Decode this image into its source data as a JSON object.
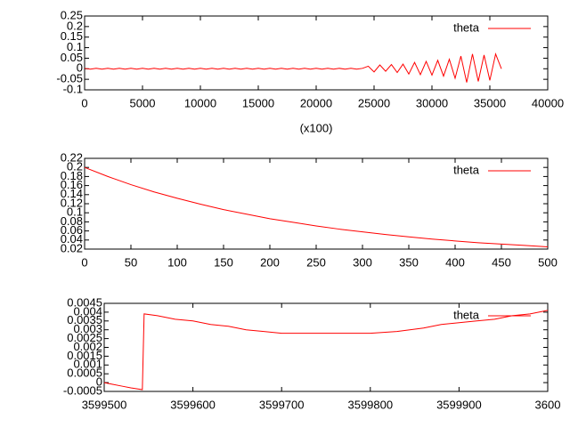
{
  "chart_data": [
    {
      "type": "line",
      "xlabel": "(x100)",
      "legend": "top right",
      "x": [
        0,
        500,
        1000,
        1500,
        2000,
        2500,
        3000,
        3500,
        4000,
        4500,
        5000,
        5500,
        6000,
        6500,
        7000,
        7500,
        8000,
        8500,
        9000,
        9500,
        10000,
        10500,
        11000,
        11500,
        12000,
        12500,
        13000,
        13500,
        14000,
        14500,
        15000,
        15500,
        16000,
        16500,
        17000,
        17500,
        18000,
        18500,
        19000,
        19500,
        20000,
        20500,
        21000,
        21500,
        22000,
        22500,
        23000,
        23500,
        24000,
        24500,
        25000,
        25500,
        26000,
        26500,
        27000,
        27500,
        28000,
        28500,
        29000,
        29500,
        30000,
        30500,
        31000,
        31500,
        32000,
        32500,
        33000,
        33500,
        34000,
        34500,
        35000,
        35500,
        36000
      ],
      "series": [
        {
          "name": "theta",
          "color": "#ff0000",
          "values": [
            0.002,
            -0.002,
            0.002,
            -0.002,
            0.002,
            -0.002,
            0.002,
            -0.002,
            0.002,
            -0.002,
            0.002,
            -0.002,
            0.002,
            -0.002,
            0.002,
            -0.002,
            0.002,
            -0.002,
            0.002,
            -0.002,
            0.002,
            -0.002,
            0.002,
            -0.002,
            0.002,
            -0.002,
            0.002,
            -0.002,
            0.002,
            -0.002,
            0.002,
            -0.002,
            0.002,
            -0.002,
            0.002,
            -0.002,
            0.002,
            -0.002,
            0.002,
            -0.002,
            0.002,
            -0.002,
            0.002,
            -0.002,
            0.002,
            -0.002,
            0.002,
            -0.002,
            0.002,
            0.012,
            -0.015,
            0.018,
            -0.012,
            0.02,
            -0.018,
            0.022,
            -0.025,
            0.03,
            -0.028,
            0.035,
            -0.03,
            0.04,
            -0.035,
            0.045,
            -0.045,
            0.06,
            -0.065,
            0.07,
            -0.06,
            0.065,
            -0.055,
            0.07,
            0
          ]
        }
      ],
      "xlim": [
        0,
        40000
      ],
      "ylim": [
        -0.1,
        0.25
      ],
      "xticks": [
        0,
        5000,
        10000,
        15000,
        20000,
        25000,
        30000,
        35000,
        40000
      ],
      "yticks": [
        0.25,
        0.2,
        0.15,
        0.1,
        0.05,
        0,
        -0.05,
        -0.1
      ]
    },
    {
      "type": "line",
      "legend": "top right",
      "x": [
        0,
        25,
        50,
        75,
        100,
        125,
        150,
        175,
        200,
        225,
        250,
        275,
        300,
        325,
        350,
        375,
        400,
        425,
        450,
        475,
        500
      ],
      "series": [
        {
          "name": "theta",
          "color": "#ff0000",
          "values": [
            0.2,
            0.18,
            0.162,
            0.146,
            0.132,
            0.119,
            0.107,
            0.097,
            0.087,
            0.079,
            0.071,
            0.064,
            0.058,
            0.052,
            0.047,
            0.042,
            0.038,
            0.034,
            0.031,
            0.028,
            0.025
          ]
        }
      ],
      "xlim": [
        0,
        500
      ],
      "ylim": [
        0.02,
        0.22
      ],
      "xticks": [
        0,
        50,
        100,
        150,
        200,
        250,
        300,
        350,
        400,
        450,
        500
      ],
      "yticks": [
        0.22,
        0.2,
        0.18,
        0.16,
        0.14,
        0.12,
        0.1,
        0.08,
        0.06,
        0.04,
        0.02
      ]
    },
    {
      "type": "line",
      "legend": "top right",
      "x": [
        3599500,
        3599510,
        3599520,
        3599530,
        3599543,
        3599545,
        3599560,
        3599580,
        3599600,
        3599620,
        3599640,
        3599660,
        3599680,
        3599700,
        3599750,
        3599800,
        3599830,
        3599860,
        3599880,
        3599900,
        3599920,
        3599940,
        3599960,
        3599980,
        3600000
      ],
      "series": [
        {
          "name": "theta",
          "color": "#ff0000",
          "values": [
            0,
            -0.0001,
            -0.0002,
            -0.0003,
            -0.0004,
            0.0039,
            0.0038,
            0.0036,
            0.0035,
            0.0033,
            0.0032,
            0.003,
            0.0029,
            0.0028,
            0.0028,
            0.0028,
            0.0029,
            0.0031,
            0.0033,
            0.0034,
            0.0035,
            0.0036,
            0.0038,
            0.0039,
            0.0041
          ]
        }
      ],
      "xlim": [
        3599500,
        3600000
      ],
      "ylim": [
        -0.0005,
        0.0045
      ],
      "xticks": [
        3599500,
        3599600,
        3599700,
        3599800,
        3599900,
        {
          "value": 3600000,
          "label": "3600"
        }
      ],
      "yticks": [
        0.0045,
        0.004,
        0.0035,
        0.003,
        0.0025,
        0.002,
        0.0015,
        0.001,
        0.0005,
        0,
        -0.0005
      ]
    }
  ]
}
